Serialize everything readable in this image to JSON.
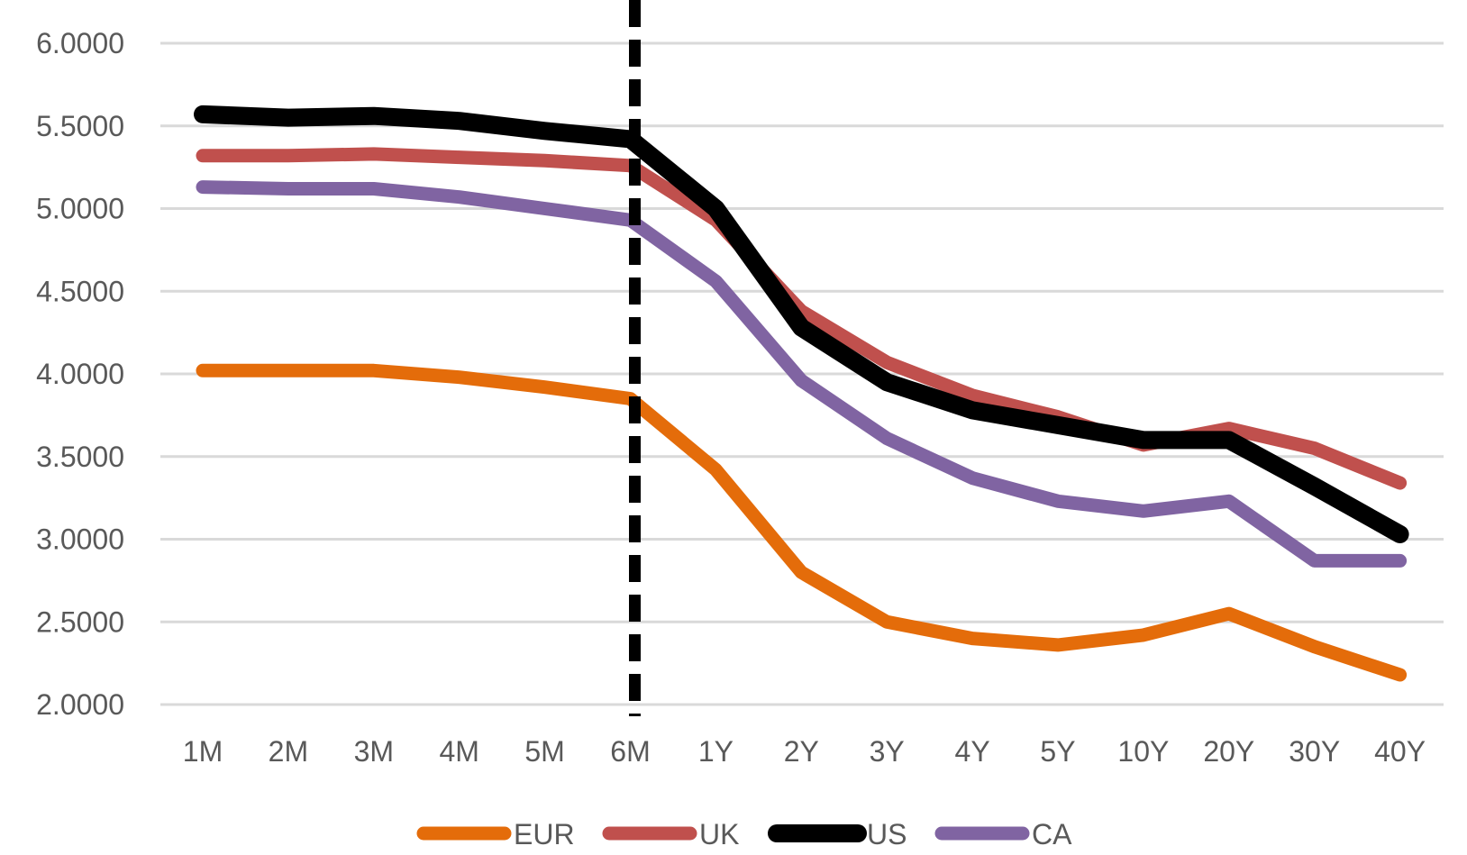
{
  "chart_data": {
    "type": "line",
    "title": "",
    "xlabel": "",
    "ylabel": "",
    "categories": [
      "1M",
      "2M",
      "3M",
      "4M",
      "5M",
      "6M",
      "1Y",
      "2Y",
      "3Y",
      "4Y",
      "5Y",
      "10Y",
      "20Y",
      "30Y",
      "40Y"
    ],
    "ylim": [
      2.0,
      6.0
    ],
    "yticks": [
      {
        "value": 2.0,
        "label": "2.0000"
      },
      {
        "value": 2.5,
        "label": "2.5000"
      },
      {
        "value": 3.0,
        "label": "3.0000"
      },
      {
        "value": 3.5,
        "label": "3.5000"
      },
      {
        "value": 4.0,
        "label": "4.0000"
      },
      {
        "value": 4.5,
        "label": "4.5000"
      },
      {
        "value": 5.0,
        "label": "5.0000"
      },
      {
        "value": 5.5,
        "label": "5.5000"
      },
      {
        "value": 6.0,
        "label": "6.0000"
      }
    ],
    "grid": true,
    "legend_position": "bottom",
    "reference_line": {
      "category": "6M",
      "style": "dashed",
      "color": "#000000"
    },
    "series": [
      {
        "name": "EUR",
        "color": "#E46C0A",
        "values": [
          4.02,
          4.02,
          4.02,
          3.98,
          3.92,
          3.85,
          3.42,
          2.8,
          2.5,
          2.4,
          2.36,
          2.42,
          2.55,
          2.35,
          2.18
        ]
      },
      {
        "name": "UK",
        "color": "#C0504D",
        "values": [
          5.32,
          5.32,
          5.33,
          5.31,
          5.29,
          5.26,
          4.93,
          4.38,
          4.07,
          3.87,
          3.74,
          3.57,
          3.67,
          3.55,
          3.34
        ]
      },
      {
        "name": "US",
        "color": "#000000",
        "values": [
          5.57,
          5.55,
          5.56,
          5.53,
          5.47,
          5.42,
          5.0,
          4.28,
          3.95,
          3.78,
          3.69,
          3.6,
          3.6,
          3.32,
          3.03
        ]
      },
      {
        "name": "CA",
        "color": "#8064A2",
        "values": [
          5.13,
          5.12,
          5.12,
          5.07,
          5.0,
          4.93,
          4.56,
          3.96,
          3.61,
          3.37,
          3.23,
          3.17,
          3.23,
          2.87,
          2.87
        ]
      }
    ]
  }
}
